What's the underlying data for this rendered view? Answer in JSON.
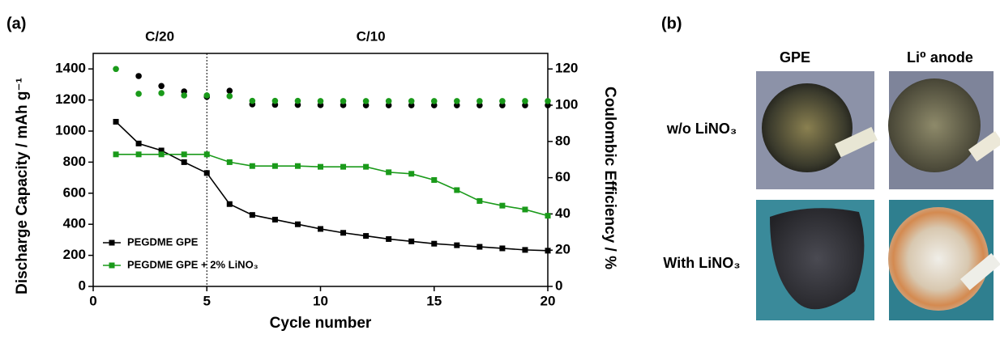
{
  "panel_labels": [
    "(a)",
    "(b)"
  ],
  "chart_data": {
    "type": "line",
    "x_label": "Cycle number",
    "y_label": "Discharge Capacity / mAh g⁻¹",
    "y2_label": "Coulombic Efficiency / %",
    "annotations": [
      "C/20",
      "C/10"
    ],
    "divider_x": 5,
    "x": [
      1,
      2,
      3,
      4,
      5,
      6,
      7,
      8,
      9,
      10,
      11,
      12,
      13,
      14,
      15,
      16,
      17,
      18,
      19,
      20
    ],
    "xlim": [
      0,
      20
    ],
    "xticks": [
      0,
      5,
      10,
      15,
      20
    ],
    "ylim": [
      0,
      1500
    ],
    "yticks": [
      0,
      200,
      400,
      600,
      800,
      1000,
      1200,
      1400
    ],
    "y2lim": [
      0,
      128.6
    ],
    "y2ticks": [
      0,
      20,
      40,
      60,
      80,
      100,
      120
    ],
    "legend": "lower left",
    "series": [
      {
        "name": "PEGDME GPE",
        "color": "#000000",
        "marker": "square",
        "line": true,
        "axis": "y",
        "values": [
          1060,
          920,
          875,
          800,
          730,
          530,
          460,
          430,
          400,
          370,
          345,
          325,
          305,
          290,
          275,
          265,
          255,
          245,
          235,
          230
        ]
      },
      {
        "name": "PEGDME GPE + 2% LiNO₃",
        "color": "#1a9a1a",
        "marker": "square",
        "line": true,
        "axis": "y",
        "values": [
          850,
          850,
          850,
          850,
          850,
          800,
          775,
          775,
          775,
          770,
          770,
          770,
          735,
          725,
          685,
          620,
          550,
          520,
          495,
          455
        ]
      },
      {
        "color": "#000000",
        "marker": "circle",
        "line": false,
        "axis": "y2",
        "values": [
          null,
          116.1,
          110.6,
          107.6,
          104.6,
          108,
          100.5,
          100.3,
          100.2,
          100.1,
          100.1,
          100,
          100,
          100,
          100,
          100,
          100,
          100,
          100,
          100
        ]
      },
      {
        "color": "#1a9a1a",
        "marker": "circle",
        "line": false,
        "axis": "y2",
        "values": [
          120,
          106.3,
          106.7,
          105.4,
          105.4,
          105,
          102.4,
          102.4,
          102.4,
          102.3,
          102.3,
          102.3,
          102.3,
          102.3,
          102.3,
          102.3,
          102.3,
          102.3,
          102.3,
          102.3
        ]
      }
    ]
  },
  "photos": {
    "column_headers": [
      "GPE",
      "Li⁰ anode"
    ],
    "row_labels": [
      "w/o LiNO₃",
      "With LiNO₃"
    ]
  }
}
